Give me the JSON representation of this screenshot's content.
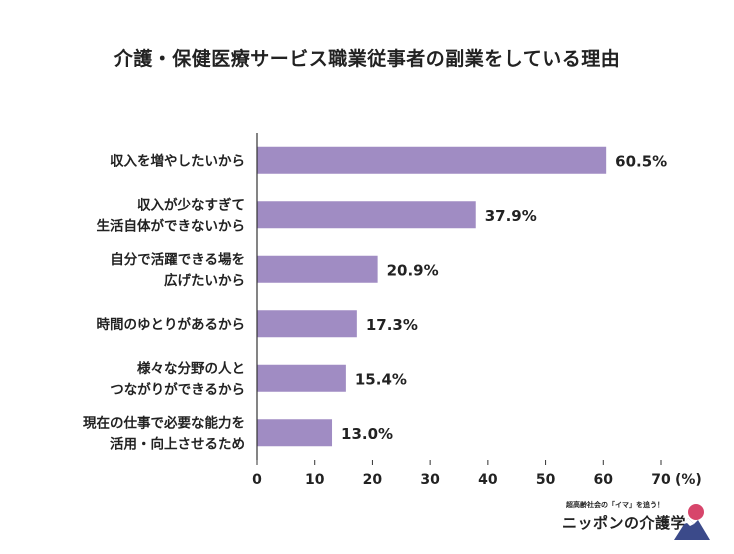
{
  "title": "介護・保健医療サービス職業従事者の副業をしている理由",
  "chart_data": {
    "type": "bar",
    "orientation": "horizontal",
    "categories": [
      [
        "収入を増やしたいから"
      ],
      [
        "収入が少なすぎて",
        "生活自体ができないから"
      ],
      [
        "自分で活躍できる場を",
        "広げたいから"
      ],
      [
        "時間のゆとりがあるから"
      ],
      [
        "様々な分野の人と",
        "つながりができるから"
      ],
      [
        "現在の仕事で必要な能力を",
        "活用・向上させるため"
      ]
    ],
    "values": [
      60.5,
      37.9,
      20.9,
      17.3,
      15.4,
      13.0
    ],
    "value_labels": [
      "60.5%",
      "37.9%",
      "20.9%",
      "17.3%",
      "15.4%",
      "13.0%"
    ],
    "xlim": [
      0,
      70
    ],
    "xticks": [
      "0",
      "10",
      "20",
      "30",
      "40",
      "50",
      "60",
      "70"
    ],
    "xlabel": "(%)",
    "bar_color": "#a08cc3",
    "grid": false
  },
  "brand": {
    "tagline": "超高齢社会の「イマ」を追う！",
    "name": "ニッポンの介護学"
  }
}
